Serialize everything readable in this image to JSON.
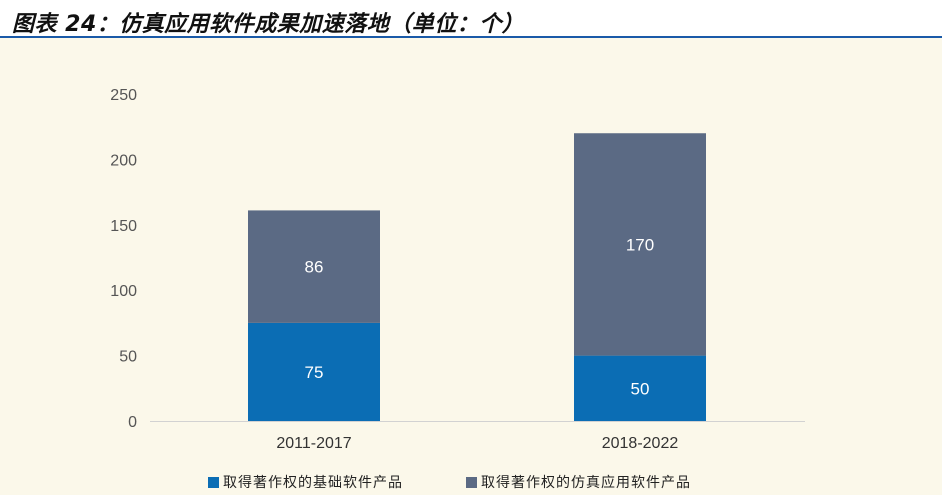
{
  "figure": {
    "title": "图表 24：仿真应用软件成果加速落地（单位：个）"
  },
  "colors": {
    "background": "#fbf8ea",
    "series_basic": "#0b6db4",
    "series_sim": "#5b6a84",
    "title_rule": "#1a5aa8"
  },
  "chart_data": {
    "type": "bar",
    "stacked": true,
    "categories": [
      "2011-2017",
      "2018-2022"
    ],
    "series": [
      {
        "name": "取得著作权的基础软件产品",
        "values": [
          75,
          50
        ],
        "color": "#0b6db4"
      },
      {
        "name": "取得著作权的仿真应用软件产品",
        "values": [
          86,
          170
        ],
        "color": "#5b6a84"
      }
    ],
    "ylim": [
      0,
      250
    ],
    "yticks": [
      0,
      50,
      100,
      150,
      200,
      250
    ],
    "ytick_labels": [
      "0",
      "50",
      "100",
      "150",
      "200",
      "250"
    ],
    "grid": false,
    "legend_position": "bottom",
    "data_labels": true
  }
}
